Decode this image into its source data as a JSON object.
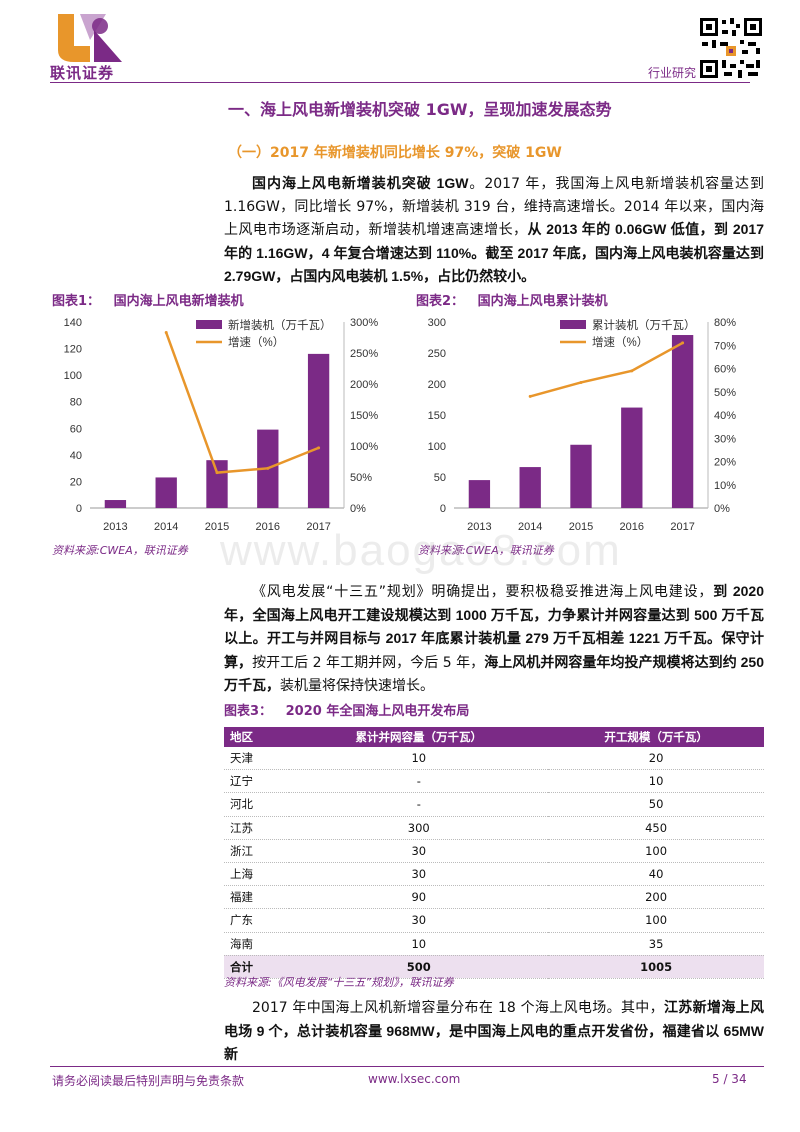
{
  "header": {
    "brand": "联讯证券",
    "category": "行业研究"
  },
  "section_title": "一、海上风电新增装机突破 1GW，呈现加速发展态势",
  "subsection_title": "（一）2017 年新增装机同比增长 97%，突破 1GW",
  "para1": {
    "lead": "国内海上风电新增装机突破 1GW",
    "text1": "。2017 年，我国海上风电新增装机容量达到1.16GW，同比增长 97%，新增装机 319 台，维持高速增长。2014 年以来，国内海上风电市场逐渐启动，新增装机增速高速增长，",
    "bold1": "从 2013 年的 0.06GW 低值，到 2017 年的 1.16GW，4 年复合增速达到 110%。截至 2017 年底，国内海上风电装机容量达到 2.79GW，占国内风电装机 1.5%，占比仍然较小。"
  },
  "figure1": {
    "label": "图表1：",
    "title": "国内海上风电新增装机",
    "source": "资料来源:CWEA，联讯证券"
  },
  "figure2": {
    "label": "图表2：",
    "title": "国内海上风电累计装机",
    "source": "资料来源:CWEA，联讯证券"
  },
  "para2": {
    "text1": "《风电发展“十三五”规划》明确提出，要积极稳妥推进海上风电建设，",
    "bold1": "到 2020 年，全国海上风电开工建设规模达到 1000 万千瓦，力争累计并网容量达到 500 万千瓦以上。开工与并网目标与 2017 年底累计装机量 279 万千瓦相差 1221 万千瓦。保守计算，",
    "text2": "按开工后 2 年工期并网，今后 5 年，",
    "bold2": "海上风机并网容量年均投产规模将达到约 250 万千瓦，",
    "text3": "装机量将保持快速增长。"
  },
  "figure3": {
    "label": "图表3：",
    "title": "2020 年全国海上风电开发布局",
    "source": "资料来源:《风电发展“十三五”规划》，联讯证券",
    "headers": [
      "地区",
      "累计并网容量（万千瓦）",
      "开工规模（万千瓦）"
    ],
    "rows": [
      [
        "天津",
        "10",
        "20"
      ],
      [
        "辽宁",
        "-",
        "10"
      ],
      [
        "河北",
        "-",
        "50"
      ],
      [
        "江苏",
        "300",
        "450"
      ],
      [
        "浙江",
        "30",
        "100"
      ],
      [
        "上海",
        "30",
        "40"
      ],
      [
        "福建",
        "90",
        "200"
      ],
      [
        "广东",
        "30",
        "100"
      ],
      [
        "海南",
        "10",
        "35"
      ]
    ],
    "total": [
      "合计",
      "500",
      "1005"
    ]
  },
  "para3": {
    "text1": "2017 年中国海上风机新增容量分布在 18 个海上风电场。其中，",
    "bold1": "江苏新增海上风电场 9 个，总计装机容量 968MW，是中国海上风电的重点开发省份，福建省以 65MW 新"
  },
  "watermark": "www.baogao8.com",
  "footer": {
    "disclaimer": "请务必阅读最后特别声明与免责条款",
    "url": "www.lxsec.com",
    "page": "5 / 34"
  },
  "colors": {
    "brand_purple": "#7b2a86",
    "accent_orange": "#e8962b"
  },
  "chart_data": [
    {
      "type": "bar",
      "categories": [
        "2013",
        "2014",
        "2015",
        "2016",
        "2017"
      ],
      "series": [
        {
          "name": "新增装机（万千瓦）",
          "type": "bar",
          "axis": "left",
          "values": [
            6,
            23,
            36,
            59,
            116
          ]
        },
        {
          "name": "增速（%）",
          "type": "line",
          "axis": "right",
          "values": [
            null,
            283,
            57,
            64,
            97
          ]
        }
      ],
      "ylim": [
        0,
        140
      ],
      "yticks": [
        0,
        20,
        40,
        60,
        80,
        100,
        120,
        140
      ],
      "y2lim": [
        0,
        300
      ],
      "y2ticks": [
        "0%",
        "50%",
        "100%",
        "150%",
        "200%",
        "250%",
        "300%"
      ],
      "legend": "top-left",
      "grid": false
    },
    {
      "type": "bar",
      "categories": [
        "2013",
        "2014",
        "2015",
        "2016",
        "2017"
      ],
      "series": [
        {
          "name": "累计装机（万千瓦）",
          "type": "bar",
          "axis": "left",
          "values": [
            45,
            66,
            102,
            162,
            279
          ]
        },
        {
          "name": "增速（%）",
          "type": "line",
          "axis": "right",
          "values": [
            null,
            48,
            54,
            59,
            71
          ]
        }
      ],
      "ylim": [
        0,
        300
      ],
      "yticks": [
        0,
        50,
        100,
        150,
        200,
        250,
        300
      ],
      "y2lim": [
        0,
        80
      ],
      "y2ticks": [
        "0%",
        "10%",
        "20%",
        "30%",
        "40%",
        "50%",
        "60%",
        "70%",
        "80%"
      ],
      "legend": "top-left",
      "grid": false
    }
  ]
}
